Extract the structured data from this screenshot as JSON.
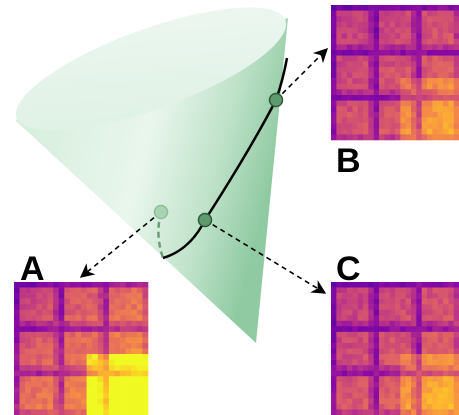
{
  "labels": {
    "a": "A",
    "b": "B",
    "c": "C"
  }
}
